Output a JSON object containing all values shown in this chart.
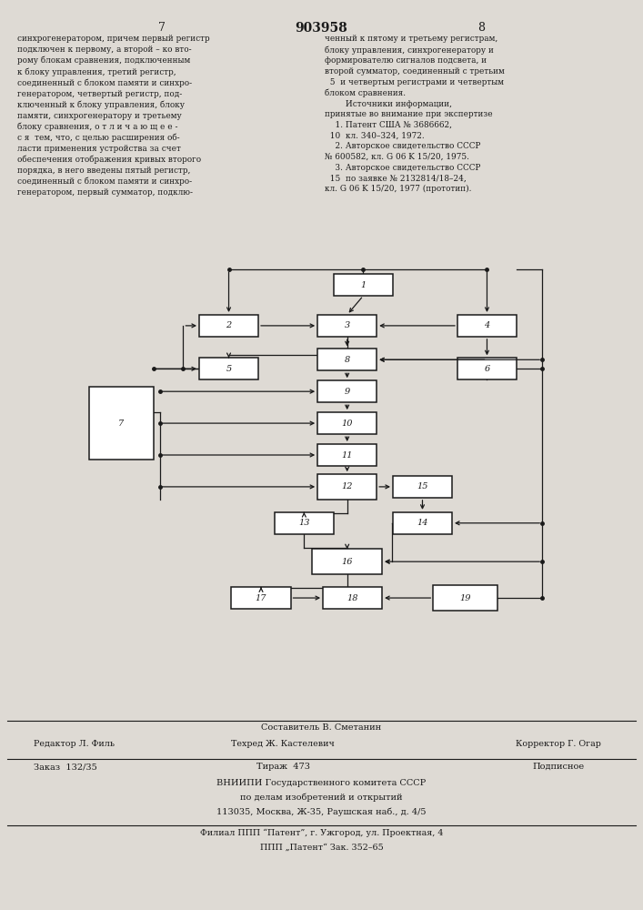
{
  "page_title": "903958",
  "page_num_left": "7",
  "page_num_right": "8",
  "bg_color": "#dedad4",
  "text_color": "#1a1a1a",
  "box_color": "#1a1a1a",
  "line_num_5": "5",
  "line_num_10": "10",
  "line_num_15": "15",
  "blocks": {
    "1": [
      0.53,
      0.945,
      0.11,
      0.048,
      false
    ],
    "2": [
      0.28,
      0.855,
      0.11,
      0.048,
      false
    ],
    "3": [
      0.5,
      0.855,
      0.11,
      0.048,
      false
    ],
    "4": [
      0.76,
      0.855,
      0.11,
      0.048,
      false
    ],
    "5": [
      0.28,
      0.76,
      0.11,
      0.048,
      false
    ],
    "6": [
      0.76,
      0.76,
      0.11,
      0.048,
      false
    ],
    "7": [
      0.08,
      0.64,
      0.12,
      0.16,
      true
    ],
    "8": [
      0.5,
      0.78,
      0.11,
      0.048,
      false
    ],
    "9": [
      0.5,
      0.71,
      0.11,
      0.048,
      false
    ],
    "10": [
      0.5,
      0.64,
      0.11,
      0.048,
      false
    ],
    "11": [
      0.5,
      0.57,
      0.11,
      0.048,
      false
    ],
    "12": [
      0.5,
      0.5,
      0.11,
      0.055,
      false
    ],
    "13": [
      0.42,
      0.42,
      0.11,
      0.048,
      false
    ],
    "14": [
      0.64,
      0.42,
      0.11,
      0.048,
      false
    ],
    "15": [
      0.64,
      0.5,
      0.11,
      0.048,
      false
    ],
    "16": [
      0.5,
      0.335,
      0.13,
      0.055,
      false
    ],
    "17": [
      0.34,
      0.255,
      0.11,
      0.048,
      false
    ],
    "18": [
      0.51,
      0.255,
      0.11,
      0.048,
      false
    ],
    "19": [
      0.72,
      0.255,
      0.12,
      0.055,
      false
    ]
  }
}
